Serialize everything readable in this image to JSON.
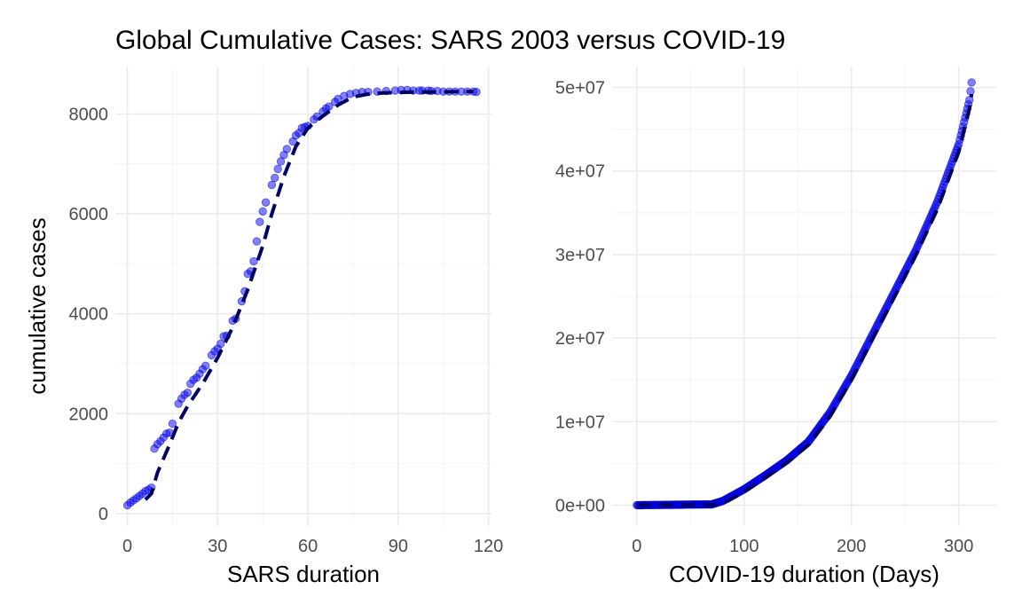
{
  "figure": {
    "title": "Global Cumulative Cases: SARS 2003 versus COVID-19",
    "shared_ylabel": "cumulative cases"
  },
  "colors": {
    "points": "#0000ff",
    "fit_line": "#000066",
    "grid": "#ebebeb",
    "tick_text": "#4d4d4d"
  },
  "chart_data": [
    {
      "id": "sars",
      "type": "scatter",
      "overlay": "dashed fitted line",
      "xlabel": "SARS duration",
      "ylabel": "cumulative cases",
      "xlim": [
        -4,
        121
      ],
      "ylim": [
        -250,
        8950
      ],
      "x_ticks": [
        0,
        30,
        60,
        90,
        120
      ],
      "x_tick_labels": [
        "0",
        "30",
        "60",
        "90",
        "120"
      ],
      "y_ticks": [
        0,
        2000,
        4000,
        6000,
        8000
      ],
      "y_tick_labels": [
        "0",
        "2000",
        "4000",
        "6000",
        "8000"
      ],
      "points": [
        [
          0,
          167
        ],
        [
          1,
          219
        ],
        [
          2,
          264
        ],
        [
          3,
          306
        ],
        [
          4,
          353
        ],
        [
          5,
          400
        ],
        [
          6,
          450
        ],
        [
          7,
          480
        ],
        [
          8,
          520
        ],
        [
          9,
          1300
        ],
        [
          10,
          1390
        ],
        [
          11,
          1450
        ],
        [
          12,
          1520
        ],
        [
          13,
          1600
        ],
        [
          14,
          1620
        ],
        [
          15,
          1800
        ],
        [
          17,
          2200
        ],
        [
          18,
          2300
        ],
        [
          19,
          2380
        ],
        [
          20,
          2420
        ],
        [
          21,
          2600
        ],
        [
          22,
          2680
        ],
        [
          23,
          2720
        ],
        [
          24,
          2800
        ],
        [
          25,
          2890
        ],
        [
          26,
          2960
        ],
        [
          28,
          3170
        ],
        [
          29,
          3250
        ],
        [
          30,
          3300
        ],
        [
          31,
          3400
        ],
        [
          32,
          3550
        ],
        [
          33,
          3560
        ],
        [
          35,
          3860
        ],
        [
          36,
          3900
        ],
        [
          38,
          4250
        ],
        [
          39,
          4450
        ],
        [
          40,
          4800
        ],
        [
          41,
          4850
        ],
        [
          42,
          5050
        ],
        [
          43,
          5450
        ],
        [
          44,
          5840
        ],
        [
          45,
          6050
        ],
        [
          46,
          6230
        ],
        [
          48,
          6580
        ],
        [
          49,
          6720
        ],
        [
          50,
          6900
        ],
        [
          51,
          7050
        ],
        [
          52,
          7180
        ],
        [
          53,
          7300
        ],
        [
          55,
          7450
        ],
        [
          56,
          7570
        ],
        [
          57,
          7620
        ],
        [
          58,
          7720
        ],
        [
          59,
          7740
        ],
        [
          60,
          7760
        ],
        [
          62,
          7890
        ],
        [
          63,
          7950
        ],
        [
          65,
          8050
        ],
        [
          66,
          8110
        ],
        [
          67,
          8150
        ],
        [
          69,
          8240
        ],
        [
          70,
          8300
        ],
        [
          72,
          8360
        ],
        [
          74,
          8400
        ],
        [
          76,
          8420
        ],
        [
          78,
          8440
        ],
        [
          80,
          8440
        ],
        [
          83,
          8450
        ],
        [
          86,
          8460
        ],
        [
          89,
          8470
        ],
        [
          91,
          8480
        ],
        [
          93,
          8480
        ],
        [
          95,
          8470
        ],
        [
          97,
          8470
        ],
        [
          98,
          8470
        ],
        [
          100,
          8470
        ],
        [
          101,
          8460
        ],
        [
          103,
          8460
        ],
        [
          105,
          8450
        ],
        [
          107,
          8450
        ],
        [
          109,
          8450
        ],
        [
          111,
          8450
        ],
        [
          113,
          8450
        ],
        [
          115,
          8450
        ],
        [
          116,
          8440
        ]
      ],
      "fit_line": [
        [
          6,
          280
        ],
        [
          8,
          400
        ],
        [
          10,
          820
        ],
        [
          14,
          1380
        ],
        [
          17,
          1820
        ],
        [
          20,
          2150
        ],
        [
          25,
          2600
        ],
        [
          30,
          3120
        ],
        [
          35,
          3730
        ],
        [
          40,
          4480
        ],
        [
          45,
          5360
        ],
        [
          48,
          6000
        ],
        [
          52,
          6750
        ],
        [
          56,
          7350
        ],
        [
          60,
          7720
        ],
        [
          65,
          7960
        ],
        [
          70,
          8180
        ],
        [
          75,
          8340
        ],
        [
          80,
          8400
        ],
        [
          85,
          8420
        ],
        [
          90,
          8430
        ],
        [
          95,
          8440
        ],
        [
          100,
          8440
        ],
        [
          105,
          8440
        ],
        [
          110,
          8450
        ],
        [
          115,
          8450
        ]
      ]
    },
    {
      "id": "covid",
      "type": "scatter",
      "overlay": "dashed fitted line",
      "xlabel": "COVID-19 duration (Days)",
      "ylabel": "",
      "xlim": [
        -23,
        335
      ],
      "ylim": [
        -2500000,
        52500000
      ],
      "x_ticks": [
        0,
        100,
        200,
        300
      ],
      "x_tick_labels": [
        "0",
        "100",
        "200",
        "300"
      ],
      "y_ticks": [
        0,
        10000000,
        20000000,
        30000000,
        40000000,
        50000000
      ],
      "y_tick_labels": [
        "0e+00",
        "1e+07",
        "2e+07",
        "3e+07",
        "4e+07",
        "5e+07"
      ],
      "curve_points_yvalues_in_millions": [
        [
          0,
          0.0
        ],
        [
          70,
          0.1
        ],
        [
          80,
          0.5
        ],
        [
          100,
          1.9
        ],
        [
          120,
          3.6
        ],
        [
          140,
          5.4
        ],
        [
          160,
          7.6
        ],
        [
          180,
          11.1
        ],
        [
          200,
          15.5
        ],
        [
          210,
          18.0
        ],
        [
          220,
          20.5
        ],
        [
          240,
          25.5
        ],
        [
          260,
          30.5
        ],
        [
          280,
          36.3
        ],
        [
          300,
          43.2
        ],
        [
          310,
          48.5
        ],
        [
          312,
          50.6
        ]
      ],
      "fit_line_yvalues_in_millions": [
        [
          0,
          0.0
        ],
        [
          75,
          0.05
        ],
        [
          85,
          0.5
        ],
        [
          100,
          1.6
        ],
        [
          120,
          3.3
        ],
        [
          140,
          5.1
        ],
        [
          160,
          7.2
        ],
        [
          180,
          10.6
        ],
        [
          200,
          15.0
        ],
        [
          220,
          20.0
        ],
        [
          240,
          24.9
        ],
        [
          260,
          29.9
        ],
        [
          280,
          35.4
        ],
        [
          300,
          42.3
        ],
        [
          310,
          47.5
        ],
        [
          312,
          49.2
        ]
      ]
    }
  ]
}
